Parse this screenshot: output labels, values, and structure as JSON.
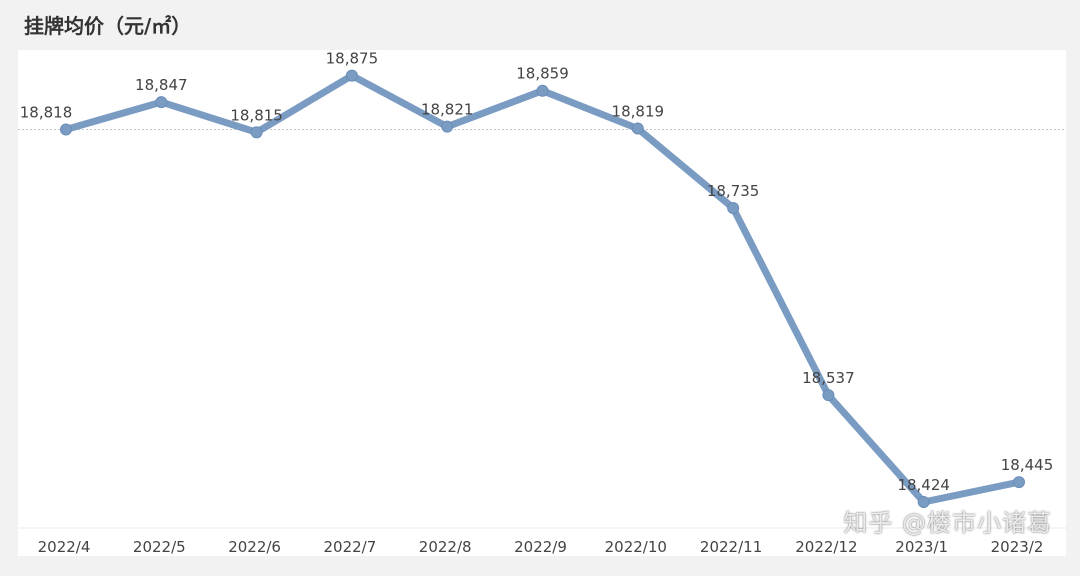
{
  "chart_data": {
    "type": "line",
    "title": "挂牌均价（元/㎡）",
    "categories": [
      "2022/4",
      "2022/5",
      "2022/6",
      "2022/7",
      "2022/8",
      "2022/9",
      "2022/10",
      "2022/11",
      "2022/12",
      "2023/1",
      "2023/2"
    ],
    "series": [
      {
        "values": [
          18818,
          18847,
          18815,
          18875,
          18821,
          18859,
          18819,
          18735,
          18537,
          18424,
          18445
        ],
        "labels": [
          "18,818",
          "18,847",
          "18,815",
          "18,875",
          "18,821",
          "18,859",
          "18,819",
          "18,735",
          "18,537",
          "18,424",
          "18,445"
        ]
      }
    ],
    "ylim": [
      18400,
      18900
    ],
    "reference_line": 18818,
    "grid": false,
    "legend": "none",
    "line_color": "#7a9cc3"
  },
  "watermark": "知乎 @楼市小诸葛"
}
